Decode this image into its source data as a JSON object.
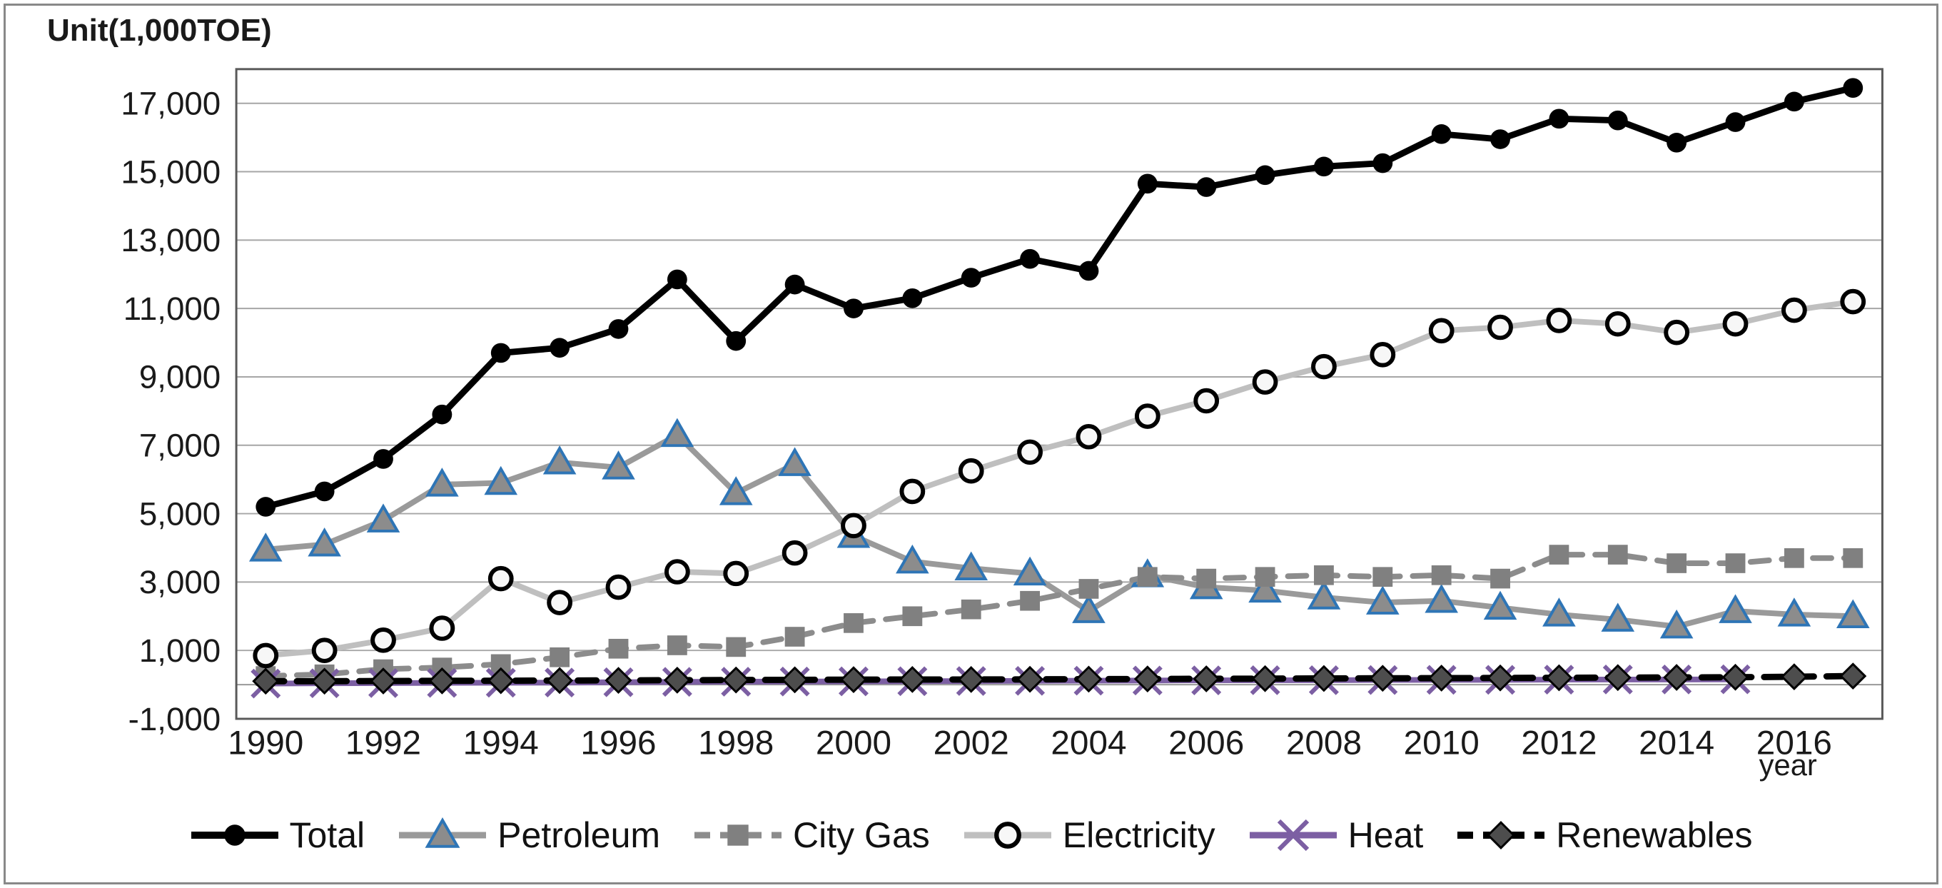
{
  "figure": {
    "unit_label": "Unit(1,000TOE)",
    "x_axis_label": "year"
  },
  "chart_data": {
    "type": "line",
    "title": "",
    "unit_label": "Unit(1,000TOE)",
    "xlabel": "year",
    "ylabel": "Unit(1,000TOE)",
    "ylim": [
      -1000,
      18000
    ],
    "ytick_interval": 2000,
    "grid": "horizontal-only",
    "legend_position": "bottom",
    "background": "#ffffff",
    "gridline_color": "#a6a6a6",
    "plot_border_color": "#595959",
    "zero_axis_color": "#999999",
    "tick_label_color": "#1a1a1a",
    "yticks": [
      -1000,
      1000,
      3000,
      5000,
      7000,
      9000,
      11000,
      13000,
      15000,
      17000
    ],
    "ytick_labels": [
      "-1,000",
      "1,000",
      "3,000",
      "5,000",
      "7,000",
      "9,000",
      "11,000",
      "13,000",
      "15,000",
      "17,000"
    ],
    "x": [
      1990,
      1991,
      1992,
      1993,
      1994,
      1995,
      1996,
      1997,
      1998,
      1999,
      2000,
      2001,
      2002,
      2003,
      2004,
      2005,
      2006,
      2007,
      2008,
      2009,
      2010,
      2011,
      2012,
      2013,
      2014,
      2015,
      2016,
      2017
    ],
    "xtick_indices": [
      0,
      2,
      4,
      6,
      8,
      10,
      12,
      14,
      16,
      18,
      20,
      22,
      24,
      26
    ],
    "xtick_labels": [
      "1990",
      "1992",
      "1994",
      "1996",
      "1998",
      "2000",
      "2002",
      "2004",
      "2006",
      "2008",
      "2010",
      "2012",
      "2014",
      "2016"
    ],
    "series": [
      {
        "name": "Total",
        "line_color": "#000000",
        "line_style": "solid",
        "line_width": 9,
        "marker": "circle-filled",
        "marker_fill": "#000000",
        "marker_stroke": "#000000",
        "values": [
          5200,
          5650,
          6600,
          7900,
          9700,
          9850,
          10400,
          11850,
          10050,
          11700,
          11000,
          11300,
          11900,
          12450,
          12100,
          14650,
          14550,
          14900,
          15150,
          15250,
          16100,
          15950,
          16550,
          16500,
          15850,
          16450,
          17050,
          17450
        ]
      },
      {
        "name": "Petroleum",
        "line_color": "#9a9a9a",
        "line_style": "solid",
        "line_width": 8,
        "marker": "triangle",
        "marker_fill": "#8c8c8c",
        "marker_stroke": "#2e75b6",
        "values": [
          3950,
          4100,
          4800,
          5850,
          5900,
          6500,
          6350,
          7300,
          5600,
          6450,
          4350,
          3600,
          3400,
          3250,
          2150,
          3200,
          2850,
          2750,
          2550,
          2400,
          2450,
          2250,
          2050,
          1900,
          1700,
          2150,
          2050,
          2000
        ]
      },
      {
        "name": "City Gas",
        "line_color": "#8c8c8c",
        "line_style": "dashed",
        "line_width": 8,
        "marker": "square",
        "marker_fill": "#808080",
        "marker_stroke": "#808080",
        "values": [
          250,
          300,
          450,
          500,
          600,
          800,
          1050,
          1150,
          1100,
          1400,
          1800,
          2000,
          2200,
          2450,
          2800,
          3150,
          3100,
          3150,
          3200,
          3150,
          3200,
          3100,
          3800,
          3800,
          3550,
          3550,
          3700,
          3700
        ]
      },
      {
        "name": "Electricity",
        "line_color": "#bfbfbf",
        "line_style": "solid",
        "line_width": 8,
        "marker": "circle-open",
        "marker_fill": "#f7f7f7",
        "marker_stroke": "#000000",
        "values": [
          850,
          1000,
          1300,
          1650,
          3100,
          2400,
          2850,
          3300,
          3250,
          3850,
          4650,
          5650,
          6250,
          6800,
          7250,
          7850,
          8300,
          8850,
          9300,
          9650,
          10350,
          10450,
          10650,
          10550,
          10300,
          10550,
          10950,
          11200
        ]
      },
      {
        "name": "Heat",
        "line_color": "#7c5fa3",
        "line_style": "solid",
        "line_width": 8,
        "marker": "x",
        "marker_fill": "none",
        "marker_stroke": "#7c5fa3",
        "values": [
          30,
          40,
          45,
          50,
          55,
          60,
          70,
          80,
          85,
          90,
          95,
          100,
          105,
          110,
          115,
          120,
          125,
          130,
          130,
          135,
          140,
          140,
          145,
          150,
          150,
          155,
          null,
          null
        ]
      },
      {
        "name": "Renewables",
        "line_color": "#000000",
        "line_style": "dashed",
        "line_width": 9,
        "marker": "diamond",
        "marker_fill": "#4d4d4d",
        "marker_stroke": "#000000",
        "values": [
          100,
          100,
          105,
          110,
          115,
          120,
          125,
          130,
          135,
          140,
          145,
          150,
          150,
          155,
          160,
          165,
          170,
          175,
          180,
          185,
          190,
          195,
          200,
          205,
          210,
          215,
          230,
          250
        ]
      }
    ]
  }
}
